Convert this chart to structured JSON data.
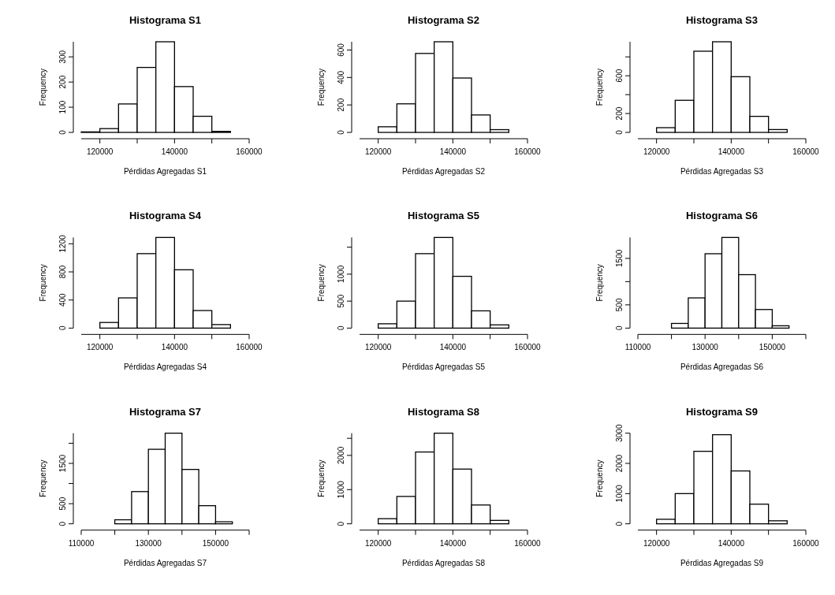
{
  "chart_data": [
    {
      "type": "histogram",
      "title": "Histograma S1",
      "xlabel": "Pérdidas Agregadas S1",
      "ylabel": "Frequency",
      "bins": [
        115000,
        120000,
        125000,
        130000,
        135000,
        140000,
        145000,
        150000,
        155000
      ],
      "values": [
        2,
        15,
        113,
        258,
        360,
        182,
        64,
        4
      ],
      "color": "#ffffff",
      "xlim": [
        115000,
        160000
      ],
      "xticks": [
        120000,
        {
          "value": 130000,
          "label": null
        },
        140000,
        {
          "value": 150000,
          "label": null
        },
        160000
      ],
      "ylim": [
        0,
        360
      ],
      "yticks": [
        0,
        100,
        200,
        300
      ]
    },
    {
      "type": "histogram",
      "title": "Histograma S2",
      "xlabel": "Pérdidas Agregadas S2",
      "ylabel": "Frequency",
      "bins": [
        115000,
        120000,
        125000,
        130000,
        135000,
        140000,
        145000,
        150000,
        155000
      ],
      "values": [
        null,
        41,
        208,
        575,
        660,
        396,
        127,
        20
      ],
      "color": "#ffffff",
      "xlim": [
        115000,
        160000
      ],
      "xticks": [
        120000,
        {
          "value": 130000,
          "label": null
        },
        140000,
        {
          "value": 150000,
          "label": null
        },
        160000
      ],
      "ylim": [
        0,
        660
      ],
      "yticks": [
        0,
        200,
        400,
        600
      ]
    },
    {
      "type": "histogram",
      "title": "Histograma S3",
      "xlabel": "Pérdidas Agregadas S3",
      "ylabel": "Frequency",
      "bins": [
        115000,
        120000,
        125000,
        130000,
        135000,
        140000,
        145000,
        150000,
        155000
      ],
      "values": [
        0,
        50,
        340,
        860,
        960,
        590,
        170,
        30
      ],
      "color": "#ffffff",
      "xlim": [
        115000,
        160000
      ],
      "xticks": [
        120000,
        {
          "value": 130000,
          "label": null
        },
        140000,
        {
          "value": 150000,
          "label": null
        },
        160000
      ],
      "ylim": [
        0,
        960
      ],
      "yticks": [
        0,
        200,
        {
          "value": 400,
          "label": null
        },
        600,
        {
          "value": 800,
          "label": null
        }
      ]
    },
    {
      "type": "histogram",
      "title": "Histograma S4",
      "xlabel": "Pérdidas Agregadas S4",
      "ylabel": "Frequency",
      "bins": [
        115000,
        120000,
        125000,
        130000,
        135000,
        140000,
        145000,
        150000,
        155000
      ],
      "values": [
        0,
        80,
        430,
        1060,
        1290,
        830,
        250,
        50
      ],
      "color": "#ffffff",
      "xlim": [
        115000,
        160000
      ],
      "xticks": [
        120000,
        {
          "value": 130000,
          "label": null
        },
        140000,
        {
          "value": 150000,
          "label": null
        },
        160000
      ],
      "ylim": [
        0,
        1290
      ],
      "yticks": [
        0,
        400,
        800,
        1200
      ]
    },
    {
      "type": "histogram",
      "title": "Histograma S5",
      "xlabel": "Pérdidas Agregadas S5",
      "ylabel": "Frequency",
      "bins": [
        115000,
        120000,
        125000,
        130000,
        135000,
        140000,
        145000,
        150000,
        155000
      ],
      "values": [
        0,
        80,
        500,
        1380,
        1680,
        960,
        320,
        60
      ],
      "color": "#ffffff",
      "xlim": [
        115000,
        160000
      ],
      "xticks": [
        120000,
        {
          "value": 130000,
          "label": null
        },
        140000,
        {
          "value": 150000,
          "label": null
        },
        160000
      ],
      "ylim": [
        0,
        1680
      ],
      "yticks": [
        0,
        500,
        1000,
        {
          "value": 1500,
          "label": null
        }
      ]
    },
    {
      "type": "histogram",
      "title": "Histograma S6",
      "xlabel": "Pérdidas Agregadas S6",
      "ylabel": "Frequency",
      "bins": [
        110000,
        115000,
        120000,
        125000,
        130000,
        135000,
        140000,
        145000,
        150000,
        155000,
        160000
      ],
      "values": [
        0,
        0,
        100,
        650,
        1600,
        1950,
        1150,
        400,
        50,
        0
      ],
      "color": "#ffffff",
      "xlim": [
        110000,
        160000
      ],
      "xticks": [
        110000,
        {
          "value": 120000,
          "label": null
        },
        130000,
        {
          "value": 140000,
          "label": null
        },
        150000,
        {
          "value": 160000,
          "label": null
        }
      ],
      "ylim": [
        0,
        1950
      ],
      "yticks": [
        0,
        500,
        {
          "value": 1000,
          "label": null
        },
        1500
      ]
    },
    {
      "type": "histogram",
      "title": "Histograma S7",
      "xlabel": "Pérdidas Agregadas S7",
      "ylabel": "Frequency",
      "bins": [
        110000,
        115000,
        120000,
        125000,
        130000,
        135000,
        140000,
        145000,
        150000,
        155000,
        160000
      ],
      "values": [
        0,
        0,
        100,
        800,
        1850,
        2250,
        1350,
        450,
        50,
        0
      ],
      "color": "#ffffff",
      "xlim": [
        110000,
        160000
      ],
      "xticks": [
        110000,
        {
          "value": 120000,
          "label": null
        },
        130000,
        {
          "value": 140000,
          "label": null
        },
        150000,
        {
          "value": 160000,
          "label": null
        }
      ],
      "ylim": [
        0,
        2250
      ],
      "yticks": [
        0,
        500,
        {
          "value": 1000,
          "label": null
        },
        1500,
        {
          "value": 2000,
          "label": null
        }
      ]
    },
    {
      "type": "histogram",
      "title": "Histograma S8",
      "xlabel": "Pérdidas Agregadas S8",
      "ylabel": "Frequency",
      "bins": [
        115000,
        120000,
        125000,
        130000,
        135000,
        140000,
        145000,
        150000,
        155000
      ],
      "values": [
        0,
        150,
        800,
        2100,
        2650,
        1600,
        550,
        100
      ],
      "color": "#ffffff",
      "xlim": [
        115000,
        160000
      ],
      "xticks": [
        120000,
        {
          "value": 130000,
          "label": null
        },
        140000,
        {
          "value": 150000,
          "label": null
        },
        160000
      ],
      "ylim": [
        0,
        2650
      ],
      "yticks": [
        0,
        1000,
        2000,
        {
          "value": 2500,
          "label": null
        }
      ]
    },
    {
      "type": "histogram",
      "title": "Histograma S9",
      "xlabel": "Pérdidas Agregadas S9",
      "ylabel": "Frequency",
      "bins": [
        115000,
        120000,
        125000,
        130000,
        135000,
        140000,
        145000,
        150000,
        155000
      ],
      "values": [
        0,
        150,
        1000,
        2400,
        2950,
        1750,
        650,
        100
      ],
      "color": "#ffffff",
      "xlim": [
        115000,
        160000
      ],
      "xticks": [
        120000,
        {
          "value": 130000,
          "label": null
        },
        140000,
        {
          "value": 150000,
          "label": null
        },
        160000
      ],
      "ylim": [
        0,
        3000
      ],
      "yticks": [
        0,
        1000,
        2000,
        3000
      ]
    }
  ]
}
